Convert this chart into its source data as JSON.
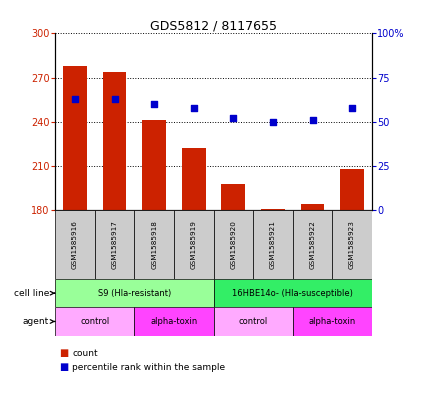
{
  "title": "GDS5812 / 8117655",
  "samples": [
    "GSM1585916",
    "GSM1585917",
    "GSM1585918",
    "GSM1585919",
    "GSM1585920",
    "GSM1585921",
    "GSM1585922",
    "GSM1585923"
  ],
  "counts": [
    278,
    274,
    241,
    222,
    198,
    181,
    184,
    208
  ],
  "percentiles": [
    63,
    63,
    60,
    58,
    52,
    50,
    51,
    58
  ],
  "ylim_left": [
    180,
    300
  ],
  "ylim_right": [
    0,
    100
  ],
  "yticks_left": [
    180,
    210,
    240,
    270,
    300
  ],
  "yticks_right": [
    0,
    25,
    50,
    75,
    100
  ],
  "ytick_labels_right": [
    "0",
    "25",
    "50",
    "75",
    "100%"
  ],
  "bar_color": "#cc2200",
  "dot_color": "#0000cc",
  "cell_line_groups": [
    {
      "label": "S9 (Hla-resistant)",
      "start": 0,
      "end": 3,
      "color": "#99ff99"
    },
    {
      "label": "16HBE14o- (Hla-susceptible)",
      "start": 4,
      "end": 7,
      "color": "#33ee66"
    }
  ],
  "agent_groups": [
    {
      "label": "control",
      "start": 0,
      "end": 1,
      "color": "#ffaaff"
    },
    {
      "label": "alpha-toxin",
      "start": 2,
      "end": 3,
      "color": "#ff44ff"
    },
    {
      "label": "control",
      "start": 4,
      "end": 5,
      "color": "#ffaaff"
    },
    {
      "label": "alpha-toxin",
      "start": 6,
      "end": 7,
      "color": "#ff44ff"
    }
  ],
  "legend_count_color": "#cc2200",
  "legend_dot_color": "#0000cc",
  "cell_line_label": "cell line",
  "agent_label": "agent",
  "legend_count_text": "count",
  "legend_percentile_text": "percentile rank within the sample",
  "background_color": "#ffffff",
  "sample_box_color": "#cccccc"
}
